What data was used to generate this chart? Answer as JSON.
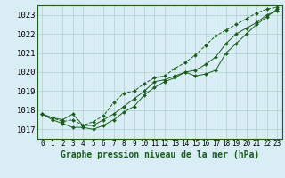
{
  "title": "Graphe pression niveau de la mer (hPa)",
  "background_color": "#d8eef4",
  "plot_bg_color": "#d8eef4",
  "grid_color": "#b0cfcf",
  "line_color": "#1a5c1a",
  "ylim": [
    1016.5,
    1023.5
  ],
  "yticks": [
    1017,
    1018,
    1019,
    1020,
    1021,
    1022,
    1023
  ],
  "ytick_fontsize": 6.5,
  "xtick_fontsize": 5.5,
  "xlabel_fontsize": 7.0,
  "series1": [
    1017.8,
    1017.6,
    1017.5,
    1017.8,
    1017.2,
    1017.2,
    1017.5,
    1017.8,
    1018.2,
    1018.6,
    1019.0,
    1019.5,
    1019.6,
    1019.8,
    1020.0,
    1019.8,
    1019.9,
    1020.1,
    1021.0,
    1021.5,
    1022.0,
    1022.5,
    1022.9,
    1023.3
  ],
  "series2": [
    1017.8,
    1017.5,
    1017.3,
    1017.1,
    1017.1,
    1017.0,
    1017.2,
    1017.5,
    1017.9,
    1018.2,
    1018.8,
    1019.2,
    1019.5,
    1019.7,
    1020.0,
    1020.1,
    1020.4,
    1020.8,
    1021.5,
    1022.0,
    1022.3,
    1022.6,
    1023.0,
    1023.2
  ],
  "series3": [
    1017.8,
    1017.6,
    1017.4,
    1017.5,
    1017.2,
    1017.4,
    1017.7,
    1018.4,
    1018.9,
    1019.0,
    1019.4,
    1019.7,
    1019.8,
    1020.2,
    1020.5,
    1020.9,
    1021.4,
    1021.9,
    1022.2,
    1022.5,
    1022.8,
    1023.1,
    1023.3,
    1023.4
  ]
}
